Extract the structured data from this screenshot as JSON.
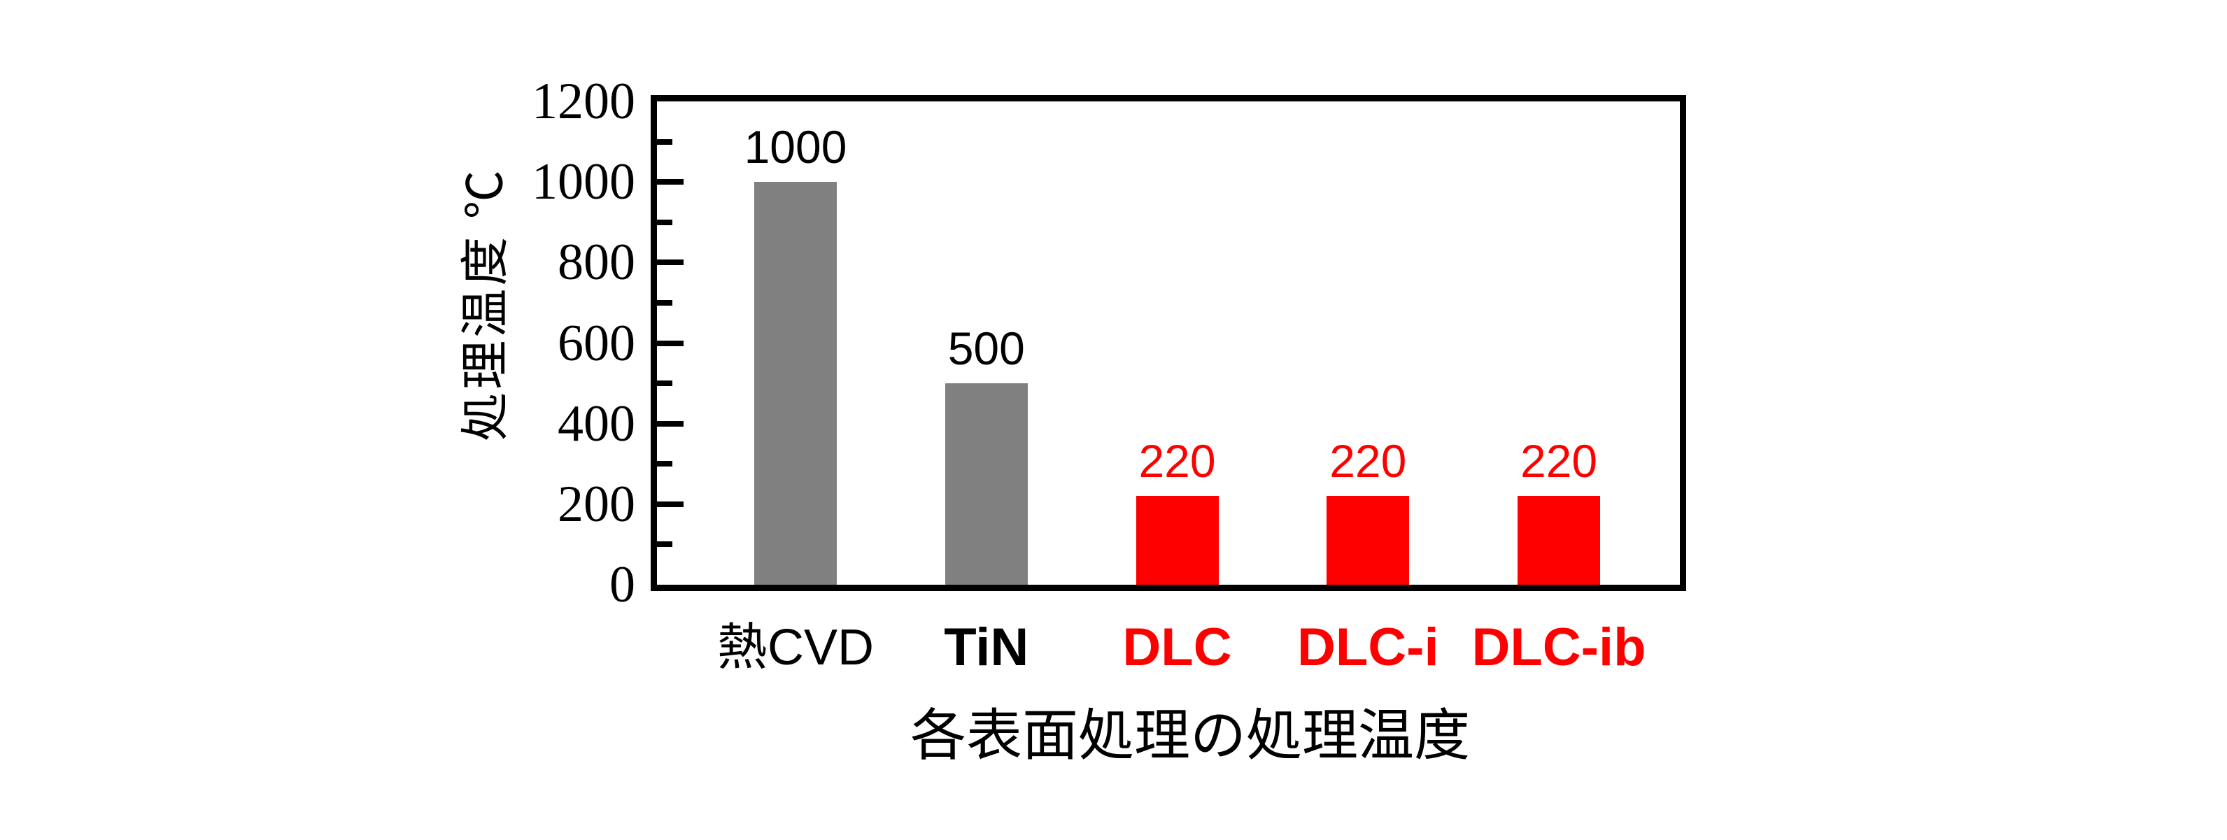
{
  "chart_data": {
    "type": "bar",
    "title": "各表面処理の処理温度",
    "ylabel": "処理温度 ℃",
    "ylim": [
      0,
      1200
    ],
    "ytick_major_step": 200,
    "ytick_minor_step": 100,
    "grid": false,
    "legend": "none",
    "categories": [
      "熱CVD",
      "TiN",
      "DLC",
      "DLC-i",
      "DLC-ib"
    ],
    "values": [
      1000,
      500,
      220,
      220,
      220
    ],
    "value_labels": [
      "1000",
      "500",
      "220",
      "220",
      "220"
    ],
    "bar_colors": [
      "#808080",
      "#808080",
      "#ff0000",
      "#ff0000",
      "#ff0000"
    ],
    "value_label_colors": [
      "#000000",
      "#000000",
      "#ff0000",
      "#ff0000",
      "#ff0000"
    ],
    "category_label_colors": [
      "#000000",
      "#000000",
      "#ff0000",
      "#ff0000",
      "#ff0000"
    ],
    "category_label_bold": [
      false,
      true,
      true,
      true,
      true
    ],
    "axis_color": "#000000",
    "background_color": "#ffffff",
    "ytick_labels": [
      "0",
      "200",
      "400",
      "600",
      "800",
      "1000",
      "1200"
    ]
  }
}
